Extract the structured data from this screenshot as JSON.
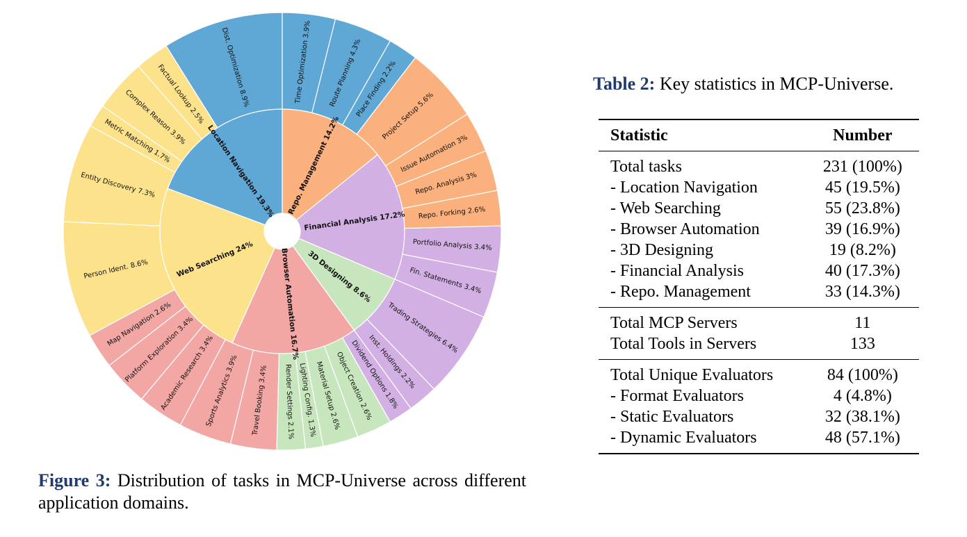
{
  "figure_caption": {
    "label": "Figure 3:",
    "text": " Distribution of tasks in MCP-Universe across different application domains."
  },
  "table_caption": {
    "label": "Table 2:",
    "text": " Key statistics in MCP-Universe."
  },
  "stats_table": {
    "headers": [
      "Statistic",
      "Number"
    ],
    "groups": [
      [
        [
          "Total tasks",
          "231 (100%)"
        ],
        [
          "- Location Navigation",
          "45 (19.5%)"
        ],
        [
          "- Web Searching",
          "55 (23.8%)"
        ],
        [
          "- Browser Automation",
          "39 (16.9%)"
        ],
        [
          "- 3D Designing",
          "19 (8.2%)"
        ],
        [
          "- Financial Analysis",
          "40 (17.3%)"
        ],
        [
          "- Repo. Management",
          "33 (14.3%)"
        ]
      ],
      [
        [
          "Total MCP Servers",
          "11"
        ],
        [
          "Total Tools in Servers",
          "133"
        ]
      ],
      [
        [
          "Total Unique Evaluators",
          "84 (100%)"
        ],
        [
          "- Format Evaluators",
          "4 (4.8%)"
        ],
        [
          "- Static Evaluators",
          "32 (38.1%)"
        ],
        [
          "- Dynamic Evaluators",
          "48 (57.1%)"
        ]
      ]
    ]
  },
  "chart_data": {
    "type": "sunburst",
    "start_angle_deg": 90,
    "direction": "counterclockwise",
    "inner": [
      {
        "name": "Location Navigation",
        "label": "Location Navigation 19.3%",
        "value": 19.3,
        "color": "#5fa8d6"
      },
      {
        "name": "Web Searching",
        "label": "Web Searching 24%",
        "value": 24.0,
        "color": "#fde28c"
      },
      {
        "name": "Browser Automation",
        "label": "Browser Automation 16.7%",
        "value": 16.7,
        "color": "#f2a7a4"
      },
      {
        "name": "3D Designing",
        "label": "3D Designing 8.6%",
        "value": 8.6,
        "color": "#c8e6bd"
      },
      {
        "name": "Financial Analysis",
        "label": "Financial Analysis 17.2%",
        "value": 17.2,
        "color": "#d3b0e4"
      },
      {
        "name": "Repo. Management",
        "label": "Repo. Management 14.2%",
        "value": 14.2,
        "color": "#fbb17d"
      }
    ],
    "outer": [
      {
        "parent": "Location Navigation",
        "label": "Dist. Optimization 8.9%",
        "value": 8.9
      },
      {
        "parent": "Web Searching",
        "label": "Factual Lookup 2.5%",
        "value": 2.5
      },
      {
        "parent": "Web Searching",
        "label": "Complex Reason 3.9%",
        "value": 3.9
      },
      {
        "parent": "Web Searching",
        "label": "Metric Matching 1.7%",
        "value": 1.7
      },
      {
        "parent": "Web Searching",
        "label": "Entity Discovery 7.3%",
        "value": 7.3
      },
      {
        "parent": "Web Searching",
        "label": "Person Ident. 8.6%",
        "value": 8.6
      },
      {
        "parent": "Browser Automation",
        "label": "Map Navigation 2.6%",
        "value": 2.6
      },
      {
        "parent": "Browser Automation",
        "label": "Platform Exploration 3.4%",
        "value": 3.4
      },
      {
        "parent": "Browser Automation",
        "label": "Academic Research 3.4%",
        "value": 3.4
      },
      {
        "parent": "Browser Automation",
        "label": "Sports Analytics 3.9%",
        "value": 3.9
      },
      {
        "parent": "Browser Automation",
        "label": "Travel Booking 3.4%",
        "value": 3.4
      },
      {
        "parent": "3D Designing",
        "label": "Render Settings 2.1%",
        "value": 2.1
      },
      {
        "parent": "3D Designing",
        "label": "Lighting Config. 1.3%",
        "value": 1.3
      },
      {
        "parent": "3D Designing",
        "label": "Material Setup 2.6%",
        "value": 2.6
      },
      {
        "parent": "3D Designing",
        "label": "Object Creation 2.6%",
        "value": 2.6
      },
      {
        "parent": "Financial Analysis",
        "label": "Dividend Options 1.8%",
        "value": 1.8
      },
      {
        "parent": "Financial Analysis",
        "label": "Inst. Holdings 2.2%",
        "value": 2.2
      },
      {
        "parent": "Financial Analysis",
        "label": "Trading Strategies 6.4%",
        "value": 6.4
      },
      {
        "parent": "Financial Analysis",
        "label": "Fin. Statements 3.4%",
        "value": 3.4
      },
      {
        "parent": "Financial Analysis",
        "label": "Portfolio Analysis 3.4%",
        "value": 3.4
      },
      {
        "parent": "Repo. Management",
        "label": "Repo. Forking 2.6%",
        "value": 2.6
      },
      {
        "parent": "Repo. Management",
        "label": "Repo. Analysis 3%",
        "value": 3.0
      },
      {
        "parent": "Repo. Management",
        "label": "Issue Automation 3%",
        "value": 3.0
      },
      {
        "parent": "Repo. Management",
        "label": "Project Setup 5.6%",
        "value": 5.6
      },
      {
        "parent": "Location Navigation",
        "label": "Place Finding 2.2%",
        "value": 2.2
      },
      {
        "parent": "Location Navigation",
        "label": "Route Planning 4.3%",
        "value": 4.3
      },
      {
        "parent": "Location Navigation",
        "label": "Time Optimization 3.9%",
        "value": 3.9
      }
    ]
  }
}
